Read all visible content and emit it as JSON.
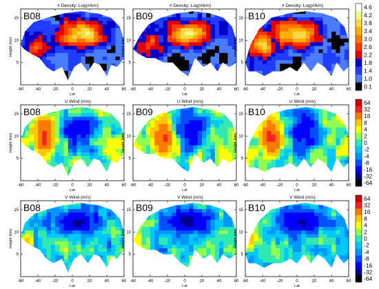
{
  "figure": {
    "x_axis_label": "Lat",
    "y_axis_label": "Height (km)",
    "x_ticks": [
      "-60",
      "-40",
      "-20",
      "0",
      "20",
      "40",
      "60"
    ],
    "y_ticks": [
      "5",
      "10",
      "15"
    ]
  },
  "rows": [
    {
      "key": "density",
      "title": "# Density: Log(#/km)",
      "colorbar": {
        "labels": [
          "4.6",
          "4.2",
          "3.8",
          "3.4",
          "3.0",
          "2.6",
          "2.2",
          "1.8",
          "1.4",
          "1.0",
          "0.1"
        ],
        "colors": [
          "#ffffff",
          "#f0ff80",
          "#ffd84a",
          "#ffb000",
          "#ff7a00",
          "#ff3a00",
          "#e00000",
          "#0000c8",
          "#1f3cff",
          "#4a7cff",
          "#050505"
        ]
      }
    },
    {
      "key": "uwind",
      "title": "U Wind (m/s)",
      "colorbar": {
        "labels": [
          "64",
          "32",
          "16",
          "8",
          "4",
          "2",
          "0",
          "-2",
          "-4",
          "-8",
          "-16",
          "-32",
          "-64"
        ],
        "colors": [
          "#c80000",
          "#ff2020",
          "#ff7a00",
          "#ffc800",
          "#ffff00",
          "#90ff50",
          "#30e8b0",
          "#00c8ff",
          "#0096ff",
          "#0050ff",
          "#0000ff",
          "#000090",
          "#000000"
        ]
      }
    },
    {
      "key": "vwind",
      "title": "V Wind (m/s)",
      "colorbar": {
        "labels": [
          "64",
          "32",
          "16",
          "8",
          "4",
          "2",
          "0",
          "-2",
          "-4",
          "-8",
          "-16",
          "-32",
          "-64"
        ],
        "colors": [
          "#c80000",
          "#ff2020",
          "#ff7a00",
          "#ffc800",
          "#ffff00",
          "#90ff50",
          "#30e8b0",
          "#00c8ff",
          "#0096ff",
          "#0050ff",
          "#0000ff",
          "#000090",
          "#000000"
        ]
      }
    }
  ],
  "panel_labels": [
    "B08",
    "B09",
    "B10"
  ],
  "chart_data": [
    {
      "type": "heatmap",
      "variable": "# Density: Log(#/km)",
      "units": "Log(#/km)",
      "panels": [
        "B08",
        "B09",
        "B10"
      ],
      "xlabel": "Lat",
      "ylabel": "Height (km)",
      "xlim": [
        -60,
        60
      ],
      "ylim": [
        0,
        17
      ],
      "color_scale": [
        0.1,
        1.0,
        1.4,
        1.8,
        2.2,
        2.6,
        3.0,
        3.4,
        3.8,
        4.2,
        4.6
      ],
      "summary": {
        "B08": {
          "max_region_lat": [
            -10,
            30
          ],
          "max_region_height_km": [
            9,
            14
          ],
          "peak": 3.4
        },
        "B09": {
          "max_region_lat": [
            -20,
            30
          ],
          "max_region_height_km": [
            9,
            14
          ],
          "peak": 3.4
        },
        "B10": {
          "max_region_lat": [
            -50,
            40
          ],
          "max_region_height_km": [
            8,
            14
          ],
          "peak": 3.4
        }
      }
    },
    {
      "type": "heatmap",
      "variable": "U Wind (m/s)",
      "units": "m/s",
      "panels": [
        "B08",
        "B09",
        "B10"
      ],
      "xlabel": "Lat",
      "ylabel": "Height (km)",
      "xlim": [
        -60,
        60
      ],
      "ylim": [
        0,
        17
      ],
      "color_scale": [
        -64,
        -32,
        -16,
        -8,
        -4,
        -2,
        0,
        2,
        4,
        8,
        16,
        32,
        64
      ],
      "summary": {
        "B08": {
          "westerly_max_lat": -30,
          "westerly_max_height_km": 10,
          "westerly_peak": 32,
          "easterly_lat": [
            -10,
            20
          ],
          "easterly_min": -16
        },
        "B09": {
          "westerly_max_lat": -20,
          "westerly_max_height_km": 11,
          "westerly_peak": 32,
          "easterly_lat": [
            0,
            30
          ],
          "easterly_min": -16
        },
        "B10": {
          "westerly_max_lat": -30,
          "westerly_max_height_km": 10,
          "westerly_peak": 32,
          "easterly_lat": [
            0,
            30
          ],
          "easterly_min": -16
        }
      }
    },
    {
      "type": "heatmap",
      "variable": "V Wind (m/s)",
      "units": "m/s",
      "panels": [
        "B08",
        "B09",
        "B10"
      ],
      "xlabel": "Lat",
      "ylabel": "Height (km)",
      "xlim": [
        -60,
        60
      ],
      "ylim": [
        0,
        17
      ],
      "color_scale": [
        -64,
        -32,
        -16,
        -8,
        -4,
        -2,
        0,
        2,
        4,
        8,
        16,
        32,
        64
      ],
      "summary": {
        "B08": {
          "negative_core_lat": [
            -40,
            40
          ],
          "negative_core_height_km": [
            10,
            15
          ],
          "core_value": -16
        },
        "B09": {
          "negative_core_lat": [
            -20,
            40
          ],
          "negative_core_height_km": [
            9,
            15
          ],
          "core_value": -16
        },
        "B10": {
          "negative_core_lat": [
            -20,
            40
          ],
          "negative_core_height_km": [
            8,
            15
          ],
          "core_value": -16
        }
      }
    }
  ]
}
